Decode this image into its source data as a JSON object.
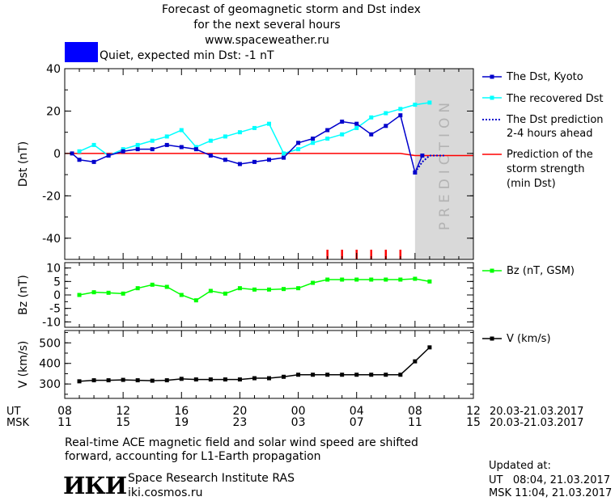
{
  "header": {
    "title": "Forecast of geomagnetic storm and Dst index",
    "subtitle": "for the next several hours",
    "site": "www.spaceweather.ru"
  },
  "status": {
    "label": "Quiet, expected min Dst: -1 nT",
    "color": "#0000ff"
  },
  "colors": {
    "dst": "#0000cc",
    "recovered": "#00ffff",
    "prediction_line": "#ff0000",
    "bz": "#00ff00",
    "v": "#000000",
    "prediction_zone": "#d9d9d9"
  },
  "prediction_word": "PREDICTION",
  "chart_data": [
    {
      "type": "line",
      "ylabel": "Dst (nT)",
      "ylim": [
        -50,
        40
      ],
      "yticks": [
        -40,
        -20,
        0,
        20,
        40
      ],
      "xlim": [
        8,
        36
      ],
      "legend": [
        {
          "label": "The Dst, Kyoto"
        },
        {
          "label": "The recovered Dst"
        },
        {
          "label": "The Dst prediction",
          "label2": "2-4 hours ahead"
        },
        {
          "label": "Prediction of the",
          "label2": "storm strength",
          "label3": "(min Dst)"
        }
      ],
      "series": [
        {
          "name": "The Dst, Kyoto",
          "x": [
            8.5,
            9,
            10,
            11,
            12,
            13,
            14,
            15,
            16,
            17,
            18,
            19,
            20,
            21,
            22,
            23,
            24,
            25,
            26,
            27,
            28,
            29,
            30,
            31,
            32,
            32.5
          ],
          "values": [
            0,
            -3,
            -4,
            -1,
            1,
            2,
            2,
            4,
            3,
            2,
            -1,
            -3,
            -5,
            -4,
            -3,
            -2,
            5,
            7,
            11,
            15,
            14,
            9,
            13,
            18,
            -9,
            -1
          ]
        },
        {
          "name": "The recovered Dst",
          "x": [
            9,
            10,
            11,
            12,
            13,
            14,
            15,
            16,
            17,
            18,
            19,
            20,
            21,
            22,
            23,
            24,
            25,
            26,
            27,
            28,
            29,
            30,
            31,
            32,
            33
          ],
          "values": [
            1,
            4,
            -1,
            2,
            4,
            6,
            8,
            11,
            3,
            6,
            8,
            10,
            12,
            14,
            0,
            2,
            5,
            7,
            9,
            12,
            17,
            19,
            21,
            23,
            24
          ]
        },
        {
          "name": "The Dst prediction 2-4 hours ahead",
          "x": [
            32,
            32.5,
            33,
            34
          ],
          "values": [
            -9,
            -4,
            -1,
            -1
          ]
        },
        {
          "name": "Prediction of the storm strength (min Dst)",
          "x": [
            8,
            31,
            32,
            36
          ],
          "values": [
            0,
            0,
            -1,
            -1
          ]
        }
      ],
      "storm_marks_x": [
        26,
        27,
        28,
        29,
        30,
        31
      ],
      "prediction_from": 32
    },
    {
      "type": "line",
      "ylabel": "Bz (nT)",
      "ylim": [
        -12,
        12
      ],
      "yticks": [
        -10,
        -5,
        0,
        5,
        10
      ],
      "xlim": [
        8,
        36
      ],
      "legend": [
        {
          "label": "Bz (nT, GSM)"
        }
      ],
      "series": [
        {
          "name": "Bz (nT, GSM)",
          "x": [
            9,
            10,
            11,
            12,
            13,
            14,
            15,
            16,
            17,
            18,
            19,
            20,
            21,
            22,
            23,
            24,
            25,
            26,
            27,
            28,
            29,
            30,
            31,
            32,
            33
          ],
          "values": [
            0,
            1,
            0.8,
            0.5,
            2.5,
            3.8,
            3,
            0,
            -2,
            1.5,
            0.5,
            2.5,
            2,
            2,
            2.2,
            2.5,
            4.5,
            5.7,
            5.7,
            5.7,
            5.7,
            5.7,
            5.7,
            6,
            5
          ]
        }
      ]
    },
    {
      "type": "line",
      "ylabel": "V (km/s)",
      "ylim": [
        230,
        560
      ],
      "yticks": [
        300,
        400,
        500
      ],
      "xlim": [
        8,
        36
      ],
      "legend": [
        {
          "label": "V (km/s)"
        }
      ],
      "series": [
        {
          "name": "V (km/s)",
          "x": [
            9,
            10,
            11,
            12,
            13,
            14,
            15,
            16,
            17,
            18,
            19,
            20,
            21,
            22,
            23,
            24,
            25,
            26,
            27,
            28,
            29,
            30,
            31,
            32,
            33
          ],
          "values": [
            313,
            318,
            318,
            320,
            318,
            316,
            318,
            325,
            322,
            322,
            322,
            322,
            328,
            328,
            335,
            345,
            345,
            345,
            345,
            345,
            345,
            345,
            345,
            410,
            478
          ]
        }
      ]
    }
  ],
  "xaxis": {
    "ut_label": "UT",
    "msk_label": "MSK",
    "ut_ticks": [
      "08",
      "12",
      "16",
      "20",
      "00",
      "04",
      "08",
      "12"
    ],
    "msk_ticks": [
      "11",
      "15",
      "19",
      "23",
      "03",
      "07",
      "11",
      "15"
    ],
    "date_range": "20.03-21.03.2017"
  },
  "footer": {
    "note_line1": "Real-time ACE magnetic field and solar wind speed are shifted",
    "note_line2": "forward, accounting for L1-Earth propagation",
    "logo_text": "ИКИ",
    "institute": "Space Research Institute RAS",
    "institute_url": "iki.cosmos.ru",
    "updated_label": "Updated at:",
    "updated_ut": "UT   08:04, 21.03.2017",
    "updated_msk": "MSK 11:04, 21.03.2017"
  }
}
